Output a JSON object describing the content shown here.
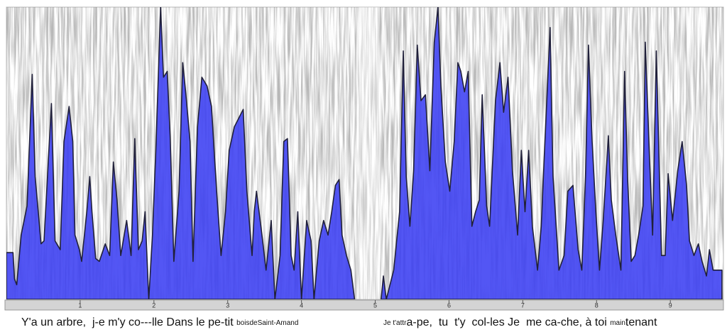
{
  "chart_data": {
    "type": "area",
    "color": "#3b3ff2",
    "outline": "#20203a",
    "xlim": [
      0,
      9.72
    ],
    "ylim": [
      0,
      100
    ],
    "xticks": [
      1,
      2,
      3,
      4,
      5,
      6,
      7,
      8,
      9
    ],
    "x": [
      0,
      0.09,
      0.11,
      0.14,
      0.2,
      0.28,
      0.35,
      0.39,
      0.47,
      0.51,
      0.61,
      0.66,
      0.73,
      0.78,
      0.85,
      0.9,
      0.93,
      0.99,
      1.02,
      1.09,
      1.13,
      1.16,
      1.21,
      1.26,
      1.34,
      1.4,
      1.45,
      1.5,
      1.55,
      1.63,
      1.69,
      1.74,
      1.79,
      1.84,
      1.88,
      1.93,
      1.98,
      2.03,
      2.09,
      2.13,
      2.18,
      2.22,
      2.27,
      2.34,
      2.39,
      2.43,
      2.49,
      2.53,
      2.59,
      2.65,
      2.72,
      2.78,
      2.85,
      2.91,
      2.97,
      3.02,
      3.09,
      3.21,
      3.26,
      3.33,
      3.36,
      3.39,
      3.45,
      3.52,
      3.59,
      3.64,
      3.71,
      3.76,
      3.81,
      3.86,
      3.9,
      3.95,
      4.0,
      4.07,
      4.13,
      4.17,
      4.24,
      4.3,
      4.36,
      4.41,
      4.46,
      4.51,
      4.55,
      4.61,
      4.67,
      4.72,
      4.9,
      5.08,
      5.11,
      5.15,
      5.25,
      5.33,
      5.38,
      5.42,
      5.47,
      5.52,
      5.57,
      5.62,
      5.68,
      5.74,
      5.8,
      5.85,
      5.89,
      5.95,
      6.01,
      6.07,
      6.12,
      6.16,
      6.21,
      6.26,
      6.31,
      6.36,
      6.41,
      6.45,
      6.51,
      6.55,
      6.63,
      6.69,
      6.74,
      6.8,
      6.86,
      6.93,
      6.98,
      7.03,
      7.08,
      7.13,
      7.2,
      7.25,
      7.3,
      7.37,
      7.41,
      7.49,
      7.56,
      7.61,
      7.68,
      7.75,
      7.8,
      7.85,
      7.89,
      7.94,
      7.99,
      8.04,
      8.09,
      8.16,
      8.2,
      8.26,
      8.33,
      8.38,
      8.42,
      8.47,
      8.52,
      8.57,
      8.63,
      8.66,
      8.72,
      8.76,
      8.81,
      8.88,
      8.93,
      8.97,
      9.03,
      9.1,
      9.16,
      9.22,
      9.26,
      9.32,
      9.38,
      9.43,
      9.49,
      9.53,
      9.58,
      9.7
    ],
    "values": [
      16,
      16,
      7,
      5,
      22,
      32,
      77,
      42,
      19,
      20,
      67,
      20,
      17,
      54,
      66,
      54,
      22,
      17,
      13,
      30,
      42,
      30,
      14,
      13,
      19,
      15,
      47,
      34,
      15,
      27,
      15,
      55,
      17,
      20,
      30,
      0,
      22,
      54,
      100,
      76,
      78,
      56,
      13,
      37,
      81,
      71,
      54,
      13,
      59,
      76,
      73,
      66,
      37,
      15,
      30,
      51,
      59,
      65,
      37,
      15,
      30,
      37,
      25,
      10,
      27,
      0,
      15,
      54,
      55,
      15,
      10,
      30,
      0,
      27,
      20,
      0,
      20,
      27,
      22,
      30,
      39,
      41,
      22,
      15,
      10,
      0,
      null,
      0,
      8,
      0,
      10,
      30,
      85,
      42,
      25,
      44,
      87,
      68,
      70,
      44,
      88,
      100,
      73,
      47,
      37,
      54,
      81,
      78,
      71,
      78,
      25,
      30,
      34,
      70,
      32,
      25,
      68,
      81,
      64,
      76,
      44,
      22,
      51,
      30,
      51,
      25,
      10,
      25,
      54,
      93,
      42,
      10,
      15,
      37,
      39,
      17,
      10,
      42,
      87,
      54,
      30,
      10,
      27,
      56,
      34,
      22,
      10,
      78,
      42,
      13,
      15,
      22,
      32,
      88,
      47,
      22,
      85,
      15,
      15,
      43,
      27,
      44,
      54,
      39,
      20,
      15,
      19,
      13,
      8,
      17,
      10,
      10
    ],
    "lyrics": [
      [
        {
          "text": "Y'a un arbre,  j-e m'y co---lle Dans le pe-tit ",
          "small": false
        },
        {
          "text": "boisdeSaint-Amand",
          "small": true
        }
      ],
      [
        {
          "text": "Je t'attr",
          "small": true
        },
        {
          "text": "a-pe,  tu  t'y  col-les Je  me ca-che, à toi ",
          "small": false
        },
        {
          "text": "main",
          "small": true
        },
        {
          "text": "tenant",
          "small": false
        }
      ]
    ]
  }
}
